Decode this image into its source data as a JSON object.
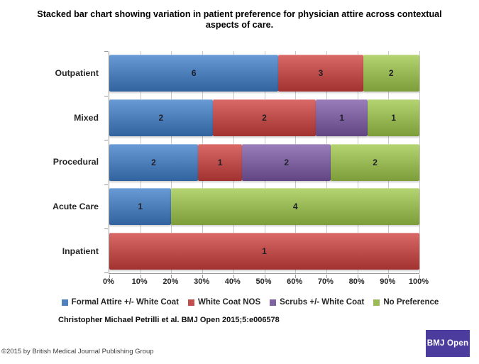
{
  "figure": {
    "title_line1": "Stacked bar chart showing variation in patient preference for physician attire across contextual",
    "title_line2": "aspects of care.",
    "citation": "Christopher Michael Petrilli et al. BMJ Open 2015;5:e006578",
    "copyright": "©2015 by British Medical Journal Publishing Group",
    "logo_text": "BMJ Open",
    "logo_color": "#4b3c9e"
  },
  "chart_data": {
    "type": "bar",
    "variant": "horizontal-stacked-100percent",
    "title": "Stacked bar chart showing variation in patient preference for physician attire across contextual aspects of care.",
    "categories": [
      "Outpatient",
      "Mixed",
      "Procedural",
      "Acute Care",
      "Inpatient"
    ],
    "series": [
      {
        "name": "Formal Attire +/- White Coat",
        "color": "#4f81bd",
        "values": [
          6,
          2,
          2,
          1,
          0
        ]
      },
      {
        "name": "White Coat NOS",
        "color": "#c0504d",
        "values": [
          3,
          2,
          1,
          0,
          1
        ]
      },
      {
        "name": "Scrubs +/- White Coat",
        "color": "#8064a2",
        "values": [
          0,
          1,
          2,
          0,
          0
        ]
      },
      {
        "name": "No Preference",
        "color": "#9bbb59",
        "values": [
          2,
          1,
          2,
          4,
          0
        ]
      }
    ],
    "x_ticks": [
      "0%",
      "10%",
      "20%",
      "30%",
      "40%",
      "50%",
      "60%",
      "70%",
      "80%",
      "90%",
      "100%"
    ],
    "xlim": [
      0,
      100
    ],
    "gridlines": true,
    "legend_position": "bottom",
    "segment_labels": "raw counts centered in each segment"
  }
}
